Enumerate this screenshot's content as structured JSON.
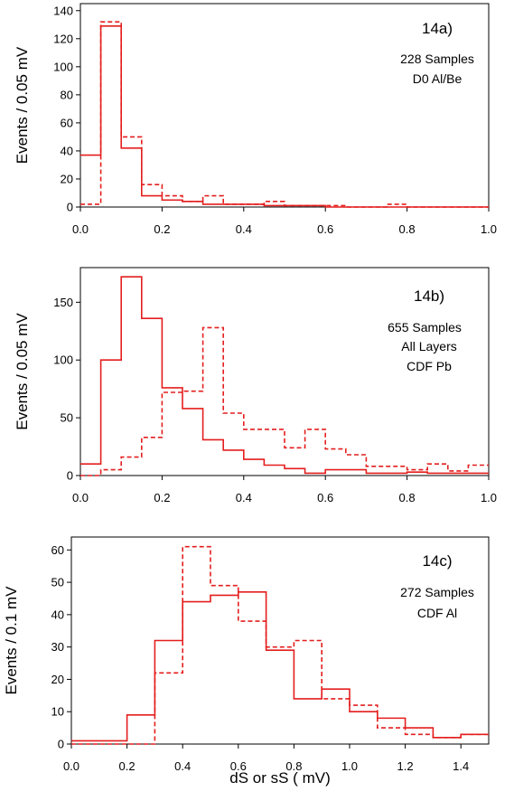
{
  "chart_data": [
    {
      "type": "histogram",
      "panel_label": "14a)",
      "annotation_lines": [
        "228 Samples",
        "D0 Al/Be"
      ],
      "ylabel": "Events / 0.05 mV",
      "xlabel": "",
      "xlim": [
        0,
        1.0
      ],
      "ylim": [
        0,
        145
      ],
      "xticks": [
        0.0,
        0.2,
        0.4,
        0.6,
        0.8,
        1.0
      ],
      "yticks": [
        0,
        20,
        40,
        60,
        80,
        100,
        120,
        140
      ],
      "bin_edges": [
        0,
        0.05,
        0.1,
        0.15,
        0.2,
        0.25,
        0.3,
        0.35,
        0.4,
        0.45,
        0.5,
        0.55,
        0.6,
        0.65,
        0.7,
        0.75,
        0.8,
        0.85,
        0.9,
        0.95,
        1.0
      ],
      "series": [
        {
          "style": "solid",
          "values": [
            37,
            129,
            42,
            8,
            5,
            4,
            2,
            2,
            2,
            1,
            1,
            1,
            0,
            0,
            0,
            0,
            0,
            0,
            0,
            0
          ]
        },
        {
          "style": "dashed",
          "values": [
            2,
            132,
            50,
            16,
            8,
            4,
            8,
            2,
            2,
            4,
            1,
            1,
            1,
            0,
            0,
            2,
            0,
            0,
            0,
            0
          ]
        }
      ],
      "line_color": "#e41e1e"
    },
    {
      "type": "histogram",
      "panel_label": "14b)",
      "annotation_lines": [
        "655 Samples",
        "All Layers",
        "CDF Pb"
      ],
      "ylabel": "Events / 0.05 mV",
      "xlabel": "",
      "xlim": [
        0,
        1.0
      ],
      "ylim": [
        0,
        180
      ],
      "xticks": [
        0.0,
        0.2,
        0.4,
        0.6,
        0.8,
        1.0
      ],
      "yticks": [
        0,
        50,
        100,
        150
      ],
      "bin_edges": [
        0,
        0.05,
        0.1,
        0.15,
        0.2,
        0.25,
        0.3,
        0.35,
        0.4,
        0.45,
        0.5,
        0.55,
        0.6,
        0.65,
        0.7,
        0.75,
        0.8,
        0.85,
        0.9,
        0.95,
        1.0
      ],
      "series": [
        {
          "style": "solid",
          "values": [
            10,
            100,
            172,
            136,
            76,
            58,
            31,
            22,
            14,
            9,
            6,
            2,
            5,
            5,
            2,
            2,
            3,
            2,
            2,
            2
          ]
        },
        {
          "style": "dashed",
          "values": [
            0,
            5,
            16,
            33,
            72,
            73,
            128,
            54,
            40,
            40,
            24,
            40,
            23,
            18,
            8,
            8,
            5,
            10,
            4,
            9
          ]
        }
      ],
      "line_color": "#e41e1e"
    },
    {
      "type": "histogram",
      "panel_label": "14c)",
      "annotation_lines": [
        "272 Samples",
        "CDF Al"
      ],
      "ylabel": "Events / 0.1 mV",
      "xlabel": "dS  or  sS ( mV)",
      "xlim": [
        0,
        1.5
      ],
      "ylim": [
        0,
        64
      ],
      "xticks": [
        0.0,
        0.2,
        0.4,
        0.6,
        0.8,
        1.0,
        1.2,
        1.4
      ],
      "yticks": [
        0,
        10,
        20,
        30,
        40,
        50,
        60
      ],
      "bin_edges": [
        0,
        0.1,
        0.2,
        0.3,
        0.4,
        0.5,
        0.6,
        0.7,
        0.8,
        0.9,
        1.0,
        1.1,
        1.2,
        1.3,
        1.4,
        1.5
      ],
      "series": [
        {
          "style": "solid",
          "values": [
            1,
            1,
            9,
            32,
            44,
            46,
            47,
            29,
            14,
            17,
            10,
            8,
            5,
            2,
            3
          ]
        },
        {
          "style": "dashed",
          "values": [
            0,
            0,
            0,
            22,
            61,
            49,
            38,
            30,
            32,
            14,
            12,
            5,
            3,
            2,
            3
          ]
        }
      ],
      "line_color": "#e41e1e"
    }
  ]
}
